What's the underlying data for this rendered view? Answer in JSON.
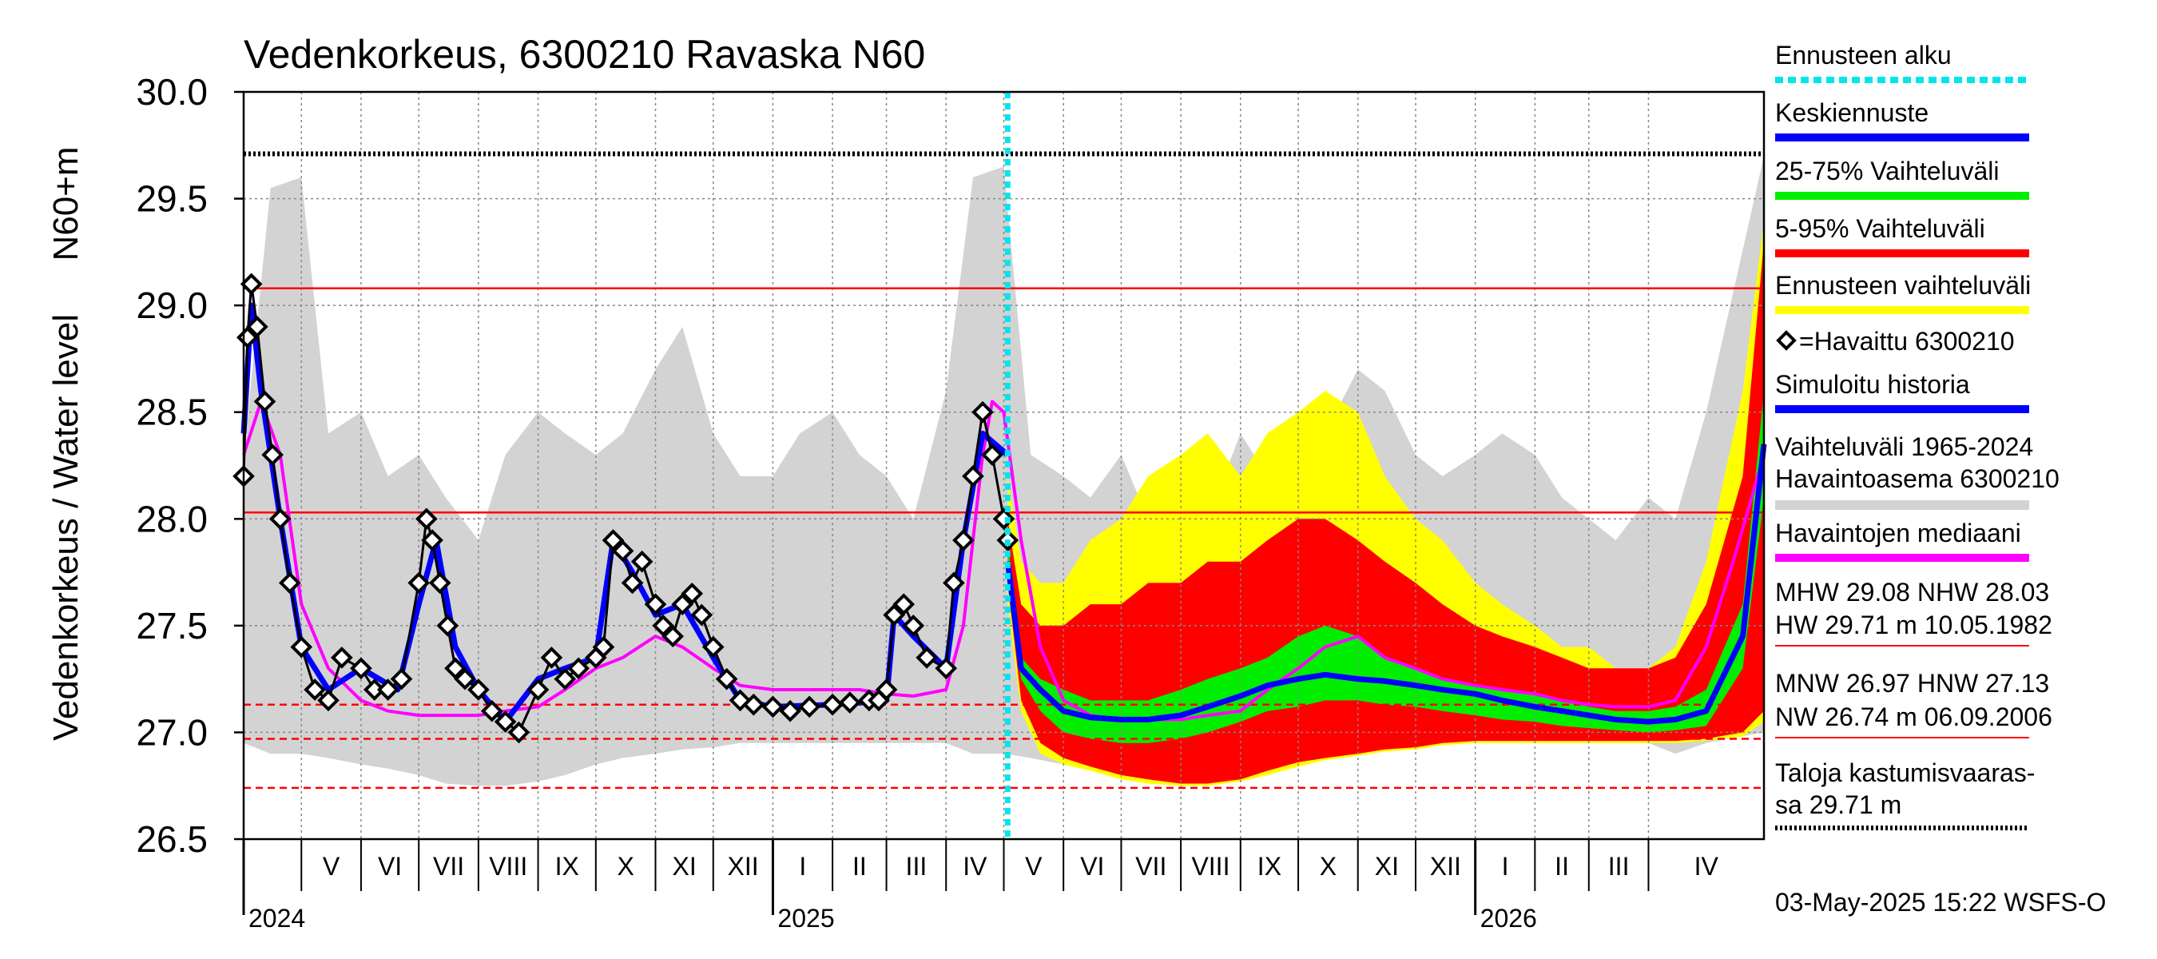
{
  "chart_data": {
    "type": "line",
    "title": "Vedenkorkeus, 6300210 Ravaska N60",
    "ylabel_main": "Vedenkorkeus / Water level",
    "ylabel_unit": "N60+m",
    "ylim": [
      26.5,
      30.0
    ],
    "yticks": [
      "26.5",
      "27.0",
      "27.5",
      "28.0",
      "28.5",
      "29.0",
      "29.5",
      "30.0"
    ],
    "ytick_values": [
      26.5,
      27.0,
      27.5,
      28.0,
      28.5,
      29.0,
      29.5,
      30.0
    ],
    "x_start": "2024-04-01",
    "x_end": "2026-05-31",
    "forecast_start": "2025-05-03",
    "months": [
      {
        "label": "V",
        "date": "2024-05-01"
      },
      {
        "label": "VI",
        "date": "2024-06-01"
      },
      {
        "label": "VII",
        "date": "2024-07-01"
      },
      {
        "label": "VIII",
        "date": "2024-08-01"
      },
      {
        "label": "IX",
        "date": "2024-09-01"
      },
      {
        "label": "X",
        "date": "2024-10-01"
      },
      {
        "label": "XI",
        "date": "2024-11-01"
      },
      {
        "label": "XII",
        "date": "2024-12-01"
      },
      {
        "label": "I",
        "date": "2025-01-01"
      },
      {
        "label": "II",
        "date": "2025-02-01"
      },
      {
        "label": "III",
        "date": "2025-03-01"
      },
      {
        "label": "IV",
        "date": "2025-04-01"
      },
      {
        "label": "V",
        "date": "2025-05-01"
      },
      {
        "label": "VI",
        "date": "2025-06-01"
      },
      {
        "label": "VII",
        "date": "2025-07-01"
      },
      {
        "label": "VIII",
        "date": "2025-08-01"
      },
      {
        "label": "IX",
        "date": "2025-09-01"
      },
      {
        "label": "X",
        "date": "2025-10-01"
      },
      {
        "label": "XI",
        "date": "2025-11-01"
      },
      {
        "label": "XII",
        "date": "2025-12-01"
      },
      {
        "label": "I",
        "date": "2026-01-01"
      },
      {
        "label": "II",
        "date": "2026-02-01"
      },
      {
        "label": "III",
        "date": "2026-03-01"
      },
      {
        "label": "IV",
        "date": "2026-04-01"
      }
    ],
    "years": [
      {
        "label": "2024",
        "date": "2024-04-01"
      },
      {
        "label": "2025",
        "date": "2025-01-01"
      },
      {
        "label": "2026",
        "date": "2026-01-01"
      }
    ],
    "reference_lines": [
      {
        "name": "MHW",
        "value": 29.08,
        "color": "#ff0000",
        "style": "solid"
      },
      {
        "name": "NHW",
        "value": 28.03,
        "color": "#ff0000",
        "style": "solid"
      },
      {
        "name": "HNW",
        "value": 27.13,
        "color": "#ff0000",
        "style": "dashed"
      },
      {
        "name": "MNW",
        "value": 26.97,
        "color": "#ff0000",
        "style": "dashed"
      },
      {
        "name": "NW",
        "value": 26.74,
        "color": "#ff0000",
        "style": "dashed"
      },
      {
        "name": "Taloja kastumisvaarassa",
        "value": 29.71,
        "color": "#000000",
        "style": "dotted"
      }
    ],
    "history_band": {
      "dates": [
        "2024-04-01",
        "2024-04-15",
        "2024-05-01",
        "2024-05-15",
        "2024-06-01",
        "2024-06-15",
        "2024-07-01",
        "2024-07-15",
        "2024-08-01",
        "2024-08-15",
        "2024-09-01",
        "2024-09-15",
        "2024-10-01",
        "2024-10-15",
        "2024-11-01",
        "2024-11-15",
        "2024-12-01",
        "2024-12-15",
        "2025-01-01",
        "2025-01-15",
        "2025-02-01",
        "2025-02-15",
        "2025-03-01",
        "2025-03-15",
        "2025-04-01",
        "2025-04-15",
        "2025-05-01",
        "2025-05-15",
        "2025-06-01",
        "2025-06-15",
        "2025-07-01",
        "2025-07-15",
        "2025-08-01",
        "2025-08-15",
        "2025-09-01",
        "2025-09-15",
        "2025-10-01",
        "2025-10-15",
        "2025-11-01",
        "2025-11-15",
        "2025-12-01",
        "2025-12-15",
        "2026-01-01",
        "2026-01-15",
        "2026-02-01",
        "2026-02-15",
        "2026-03-01",
        "2026-03-15",
        "2026-04-01",
        "2026-04-15",
        "2026-05-01",
        "2026-05-31"
      ],
      "upper": [
        28.3,
        29.55,
        29.6,
        28.4,
        28.5,
        28.2,
        28.3,
        28.1,
        27.9,
        28.3,
        28.5,
        28.4,
        28.3,
        28.4,
        28.7,
        28.9,
        28.4,
        28.2,
        28.2,
        28.4,
        28.5,
        28.3,
        28.2,
        28.0,
        28.6,
        29.6,
        29.65,
        28.3,
        28.2,
        28.1,
        28.3,
        28.0,
        28.0,
        28.0,
        28.4,
        28.2,
        28.5,
        28.4,
        28.7,
        28.6,
        28.3,
        28.2,
        28.3,
        28.4,
        28.3,
        28.1,
        28.0,
        27.9,
        28.1,
        28.0,
        28.5,
        29.7
      ],
      "lower": [
        26.95,
        26.9,
        26.9,
        26.88,
        26.85,
        26.83,
        26.8,
        26.76,
        26.75,
        26.75,
        26.77,
        26.8,
        26.85,
        26.88,
        26.9,
        26.92,
        26.93,
        26.95,
        26.95,
        26.95,
        26.95,
        26.95,
        26.95,
        26.95,
        26.95,
        26.9,
        26.9,
        26.88,
        26.85,
        26.83,
        26.8,
        26.76,
        26.75,
        26.75,
        26.77,
        26.8,
        26.85,
        26.88,
        26.9,
        26.92,
        26.93,
        26.95,
        26.95,
        26.95,
        26.95,
        26.95,
        26.95,
        26.95,
        26.95,
        26.9,
        26.95,
        27.0
      ]
    },
    "forecast_bands": {
      "dates": [
        "2025-05-03",
        "2025-05-10",
        "2025-05-20",
        "2025-06-01",
        "2025-06-15",
        "2025-07-01",
        "2025-07-15",
        "2025-08-01",
        "2025-08-15",
        "2025-09-01",
        "2025-09-15",
        "2025-10-01",
        "2025-10-15",
        "2025-11-01",
        "2025-11-15",
        "2025-12-01",
        "2025-12-15",
        "2026-01-01",
        "2026-01-15",
        "2026-02-01",
        "2026-02-15",
        "2026-03-01",
        "2026-03-15",
        "2026-04-01",
        "2026-04-15",
        "2026-05-01",
        "2026-05-20",
        "2026-05-31"
      ],
      "range_upper": [
        28.2,
        27.8,
        27.7,
        27.7,
        27.9,
        28.0,
        28.2,
        28.3,
        28.4,
        28.2,
        28.4,
        28.5,
        28.6,
        28.5,
        28.2,
        28.0,
        27.9,
        27.7,
        27.6,
        27.5,
        27.4,
        27.4,
        27.3,
        27.3,
        27.4,
        27.8,
        28.6,
        29.4
      ],
      "p95": [
        28.0,
        27.6,
        27.5,
        27.5,
        27.6,
        27.6,
        27.7,
        27.7,
        27.8,
        27.8,
        27.9,
        28.0,
        28.0,
        27.9,
        27.8,
        27.7,
        27.6,
        27.5,
        27.45,
        27.4,
        27.35,
        27.3,
        27.3,
        27.3,
        27.35,
        27.6,
        28.2,
        29.3
      ],
      "p75": [
        27.9,
        27.35,
        27.25,
        27.2,
        27.15,
        27.15,
        27.15,
        27.2,
        27.25,
        27.3,
        27.35,
        27.45,
        27.5,
        27.45,
        27.35,
        27.3,
        27.25,
        27.22,
        27.2,
        27.18,
        27.15,
        27.12,
        27.1,
        27.1,
        27.12,
        27.2,
        27.6,
        28.6
      ],
      "median": [
        27.8,
        27.3,
        27.2,
        27.1,
        27.07,
        27.06,
        27.06,
        27.08,
        27.12,
        27.17,
        27.22,
        27.25,
        27.27,
        27.25,
        27.24,
        27.22,
        27.2,
        27.18,
        27.15,
        27.12,
        27.1,
        27.08,
        27.06,
        27.05,
        27.06,
        27.1,
        27.45,
        28.35
      ],
      "p25": [
        27.75,
        27.25,
        27.1,
        27.0,
        26.97,
        26.95,
        26.95,
        26.97,
        27.0,
        27.05,
        27.1,
        27.12,
        27.15,
        27.15,
        27.13,
        27.12,
        27.1,
        27.08,
        27.06,
        27.05,
        27.03,
        27.02,
        27.01,
        27.0,
        27.01,
        27.03,
        27.3,
        28.1
      ],
      "p05": [
        27.7,
        27.15,
        26.95,
        26.88,
        26.84,
        26.8,
        26.78,
        26.76,
        26.76,
        26.78,
        26.82,
        26.86,
        26.88,
        26.9,
        26.92,
        26.93,
        26.95,
        26.96,
        26.96,
        26.96,
        26.96,
        26.96,
        26.96,
        26.96,
        26.96,
        26.97,
        27.0,
        27.1
      ],
      "range_lower": [
        27.6,
        27.1,
        26.9,
        26.85,
        26.82,
        26.78,
        26.76,
        26.75,
        26.75,
        26.77,
        26.8,
        26.84,
        26.87,
        26.89,
        26.91,
        26.92,
        26.94,
        26.95,
        26.95,
        26.95,
        26.95,
        26.95,
        26.95,
        26.95,
        26.95,
        26.96,
        26.98,
        27.05
      ]
    },
    "series": [
      {
        "name": "Havaittu 6300210",
        "color": "#000000",
        "dates": [
          "2024-04-01",
          "2024-04-03",
          "2024-04-05",
          "2024-04-08",
          "2024-04-12",
          "2024-04-16",
          "2024-04-20",
          "2024-04-25",
          "2024-05-01",
          "2024-05-08",
          "2024-05-15",
          "2024-05-22",
          "2024-06-01",
          "2024-06-08",
          "2024-06-15",
          "2024-06-22",
          "2024-07-01",
          "2024-07-05",
          "2024-07-08",
          "2024-07-12",
          "2024-07-16",
          "2024-07-20",
          "2024-07-25",
          "2024-08-01",
          "2024-08-08",
          "2024-08-15",
          "2024-08-22",
          "2024-09-01",
          "2024-09-08",
          "2024-09-15",
          "2024-09-22",
          "2024-10-01",
          "2024-10-05",
          "2024-10-10",
          "2024-10-15",
          "2024-10-20",
          "2024-10-25",
          "2024-11-01",
          "2024-11-05",
          "2024-11-10",
          "2024-11-15",
          "2024-11-20",
          "2024-11-25",
          "2024-12-01",
          "2024-12-08",
          "2024-12-15",
          "2024-12-22",
          "2025-01-01",
          "2025-01-10",
          "2025-01-20",
          "2025-02-01",
          "2025-02-10",
          "2025-02-20",
          "2025-02-25",
          "2025-03-01",
          "2025-03-05",
          "2025-03-10",
          "2025-03-15",
          "2025-03-22",
          "2025-04-01",
          "2025-04-05",
          "2025-04-10",
          "2025-04-15",
          "2025-04-20",
          "2025-04-25",
          "2025-05-01",
          "2025-05-03"
        ],
        "values": [
          28.2,
          28.85,
          29.1,
          28.9,
          28.55,
          28.3,
          28.0,
          27.7,
          27.4,
          27.2,
          27.15,
          27.35,
          27.3,
          27.2,
          27.2,
          27.25,
          27.7,
          28.0,
          27.9,
          27.7,
          27.5,
          27.3,
          27.25,
          27.2,
          27.1,
          27.05,
          27.0,
          27.2,
          27.35,
          27.25,
          27.3,
          27.35,
          27.4,
          27.9,
          27.85,
          27.7,
          27.8,
          27.6,
          27.5,
          27.45,
          27.6,
          27.65,
          27.55,
          27.4,
          27.25,
          27.15,
          27.13,
          27.12,
          27.1,
          27.12,
          27.13,
          27.14,
          27.15,
          27.15,
          27.2,
          27.55,
          27.6,
          27.5,
          27.35,
          27.3,
          27.7,
          27.9,
          28.2,
          28.5,
          28.3,
          28.0,
          27.9
        ]
      },
      {
        "name": "Havaintojen mediaani",
        "color": "#ff00ff",
        "dates": [
          "2024-04-01",
          "2024-04-10",
          "2024-04-20",
          "2024-05-01",
          "2024-05-15",
          "2024-06-01",
          "2024-06-15",
          "2024-07-01",
          "2024-07-15",
          "2024-08-01",
          "2024-08-15",
          "2024-09-01",
          "2024-09-15",
          "2024-10-01",
          "2024-10-15",
          "2024-11-01",
          "2024-11-15",
          "2024-12-01",
          "2024-12-15",
          "2025-01-01",
          "2025-01-15",
          "2025-02-01",
          "2025-02-15",
          "2025-03-01",
          "2025-03-15",
          "2025-04-01",
          "2025-04-10",
          "2025-04-20",
          "2025-04-25",
          "2025-05-01",
          "2025-05-10",
          "2025-05-20",
          "2025-06-01",
          "2025-06-15",
          "2025-07-01",
          "2025-07-15",
          "2025-08-01",
          "2025-08-15",
          "2025-09-01",
          "2025-09-15",
          "2025-10-01",
          "2025-10-15",
          "2025-11-01",
          "2025-11-15",
          "2025-12-01",
          "2025-12-15",
          "2026-01-01",
          "2026-01-15",
          "2026-02-01",
          "2026-02-15",
          "2026-03-01",
          "2026-03-15",
          "2026-04-01",
          "2026-04-15",
          "2026-05-01",
          "2026-05-15",
          "2026-05-31"
        ],
        "values": [
          28.3,
          28.55,
          28.3,
          27.6,
          27.3,
          27.15,
          27.1,
          27.08,
          27.08,
          27.08,
          27.1,
          27.12,
          27.2,
          27.3,
          27.35,
          27.45,
          27.4,
          27.3,
          27.22,
          27.2,
          27.2,
          27.2,
          27.2,
          27.18,
          27.17,
          27.2,
          27.5,
          28.3,
          28.55,
          28.5,
          27.9,
          27.4,
          27.15,
          27.08,
          27.06,
          27.06,
          27.06,
          27.08,
          27.1,
          27.2,
          27.3,
          27.4,
          27.45,
          27.35,
          27.3,
          27.25,
          27.22,
          27.2,
          27.18,
          27.15,
          27.13,
          27.12,
          27.12,
          27.15,
          27.4,
          27.8,
          28.3
        ]
      },
      {
        "name": "Simuloitu historia",
        "color": "#0000ff",
        "dates": [
          "2024-04-01",
          "2024-04-05",
          "2024-04-10",
          "2024-04-20",
          "2024-05-01",
          "2024-05-15",
          "2024-06-01",
          "2024-06-20",
          "2024-07-01",
          "2024-07-10",
          "2024-07-20",
          "2024-08-01",
          "2024-08-15",
          "2024-09-01",
          "2024-09-15",
          "2024-10-01",
          "2024-10-10",
          "2024-10-20",
          "2024-11-01",
          "2024-11-15",
          "2024-12-01",
          "2024-12-15",
          "2025-01-01",
          "2025-02-01",
          "2025-03-01",
          "2025-03-05",
          "2025-03-15",
          "2025-04-01",
          "2025-04-10",
          "2025-04-20",
          "2025-05-03"
        ],
        "values": [
          28.4,
          29.0,
          28.6,
          28.0,
          27.4,
          27.2,
          27.3,
          27.2,
          27.6,
          27.9,
          27.4,
          27.2,
          27.05,
          27.25,
          27.3,
          27.35,
          27.9,
          27.75,
          27.55,
          27.6,
          27.35,
          27.15,
          27.12,
          27.13,
          27.15,
          27.55,
          27.45,
          27.3,
          27.9,
          28.4,
          28.3
        ]
      },
      {
        "name": "Keskiennuste",
        "color": "#0000ff",
        "dates": [
          "2025-05-03",
          "2025-05-10",
          "2025-05-20",
          "2025-06-01",
          "2025-06-15",
          "2025-07-01",
          "2025-07-15",
          "2025-08-01",
          "2025-08-15",
          "2025-09-01",
          "2025-09-15",
          "2025-10-01",
          "2025-10-15",
          "2025-11-01",
          "2025-11-15",
          "2025-12-01",
          "2025-12-15",
          "2026-01-01",
          "2026-01-15",
          "2026-02-01",
          "2026-02-15",
          "2026-03-01",
          "2026-03-15",
          "2026-04-01",
          "2026-04-15",
          "2026-05-01",
          "2026-05-20",
          "2026-05-31"
        ],
        "values": [
          27.8,
          27.3,
          27.2,
          27.1,
          27.07,
          27.06,
          27.06,
          27.08,
          27.12,
          27.17,
          27.22,
          27.25,
          27.27,
          27.25,
          27.24,
          27.22,
          27.2,
          27.18,
          27.15,
          27.12,
          27.1,
          27.08,
          27.06,
          27.05,
          27.06,
          27.1,
          27.45,
          28.35
        ]
      }
    ]
  },
  "legend": [
    {
      "label": "Ennusteen alku",
      "color": "#00e5ee",
      "style": "dotted"
    },
    {
      "label": "Keskiennuste",
      "color": "#0000ff",
      "style": "solid"
    },
    {
      "label": "25-75% Vaihteluväli",
      "color": "#00ee00",
      "style": "solid"
    },
    {
      "label": "5-95% Vaihteluväli",
      "color": "#ff0000",
      "style": "solid"
    },
    {
      "label": "Ennusteen vaihteluväli",
      "color": "#ffff00",
      "style": "solid"
    },
    {
      "label": "=Havaittu 6300210",
      "color": "#000000",
      "style": "marker"
    },
    {
      "label": "Simuloitu historia",
      "color": "#0000ff",
      "style": "solid"
    },
    {
      "label": "Vaihteluväli 1965-2024",
      "label2": " Havaintoasema 6300210",
      "color": "#d3d3d3",
      "style": "solid"
    },
    {
      "label": "Havaintojen mediaani",
      "color": "#ff00ff",
      "style": "solid"
    }
  ],
  "stats": {
    "line1": "MHW  29.08 NHW  28.03",
    "line2": "HW  29.71 m 10.05.1982",
    "line3": "MNW  26.97 HNW  27.13",
    "line4": "NW  26.74 m 06.09.2006"
  },
  "flood": {
    "line1": "Taloja kastumisvaaras-",
    "line2": "sa 29.71 m"
  },
  "footer": "03-May-2025 15:22 WSFS-O",
  "colors": {
    "history_band": "#d3d3d3",
    "forecast_range": "#ffff00",
    "p5_95": "#ff0000",
    "p25_75": "#00ee00",
    "forecast_start": "#00e5ee",
    "reference": "#ff0000"
  }
}
